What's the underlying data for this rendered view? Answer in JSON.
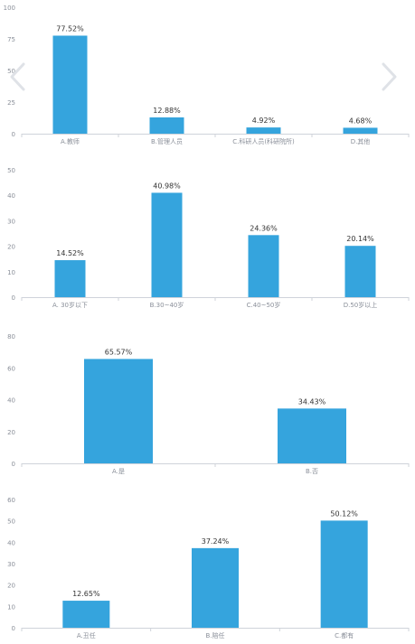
{
  "colors": {
    "bar": "#35a4dd",
    "axis": "#cfd3da",
    "tick": "#8a8f99",
    "label": "#333333",
    "arrow": "#dfe2e7"
  },
  "nav": {
    "prev_icon": "chevron-left-icon",
    "next_icon": "chevron-right-icon"
  },
  "chart_data": [
    {
      "type": "bar",
      "categories": [
        "A.教师",
        "B.管理人员",
        "C.科研人员(科研院所)",
        "D.其他"
      ],
      "values": [
        77.52,
        12.88,
        4.92,
        4.68
      ],
      "data_labels": [
        "77.52%",
        "12.88%",
        "4.92%",
        "4.68%"
      ],
      "yticks": [
        "0",
        "25",
        "50",
        "75",
        "100"
      ],
      "ylim": [
        0,
        100
      ],
      "xlabel": "",
      "ylabel": "",
      "title": "",
      "grid": false
    },
    {
      "type": "bar",
      "categories": [
        "A. 30岁以下",
        "B.30~40岁",
        "C.40~50岁",
        "D.50岁以上"
      ],
      "values": [
        14.52,
        40.98,
        24.36,
        20.14
      ],
      "data_labels": [
        "14.52%",
        "40.98%",
        "24.36%",
        "20.14%"
      ],
      "yticks": [
        "0",
        "10",
        "20",
        "30",
        "40",
        "50"
      ],
      "ylim": [
        0,
        50
      ],
      "xlabel": "",
      "ylabel": "",
      "title": "",
      "grid": false
    },
    {
      "type": "bar",
      "categories": [
        "A.是",
        "B.否"
      ],
      "values": [
        65.57,
        34.43
      ],
      "data_labels": [
        "65.57%",
        "34.43%"
      ],
      "yticks": [
        "0",
        "20",
        "40",
        "60",
        "80"
      ],
      "ylim": [
        0,
        80
      ],
      "xlabel": "",
      "ylabel": "",
      "title": "",
      "grid": false
    },
    {
      "type": "bar",
      "categories": [
        "A.丑任",
        "B.陪任",
        "C.都有"
      ],
      "values": [
        12.65,
        37.24,
        50.12
      ],
      "data_labels": [
        "12.65%",
        "37.24%",
        "50.12%"
      ],
      "yticks": [
        "0",
        "10",
        "20",
        "30",
        "40",
        "50",
        "60"
      ],
      "ylim": [
        0,
        60
      ],
      "xlabel": "",
      "ylabel": "",
      "title": "",
      "grid": false
    }
  ]
}
